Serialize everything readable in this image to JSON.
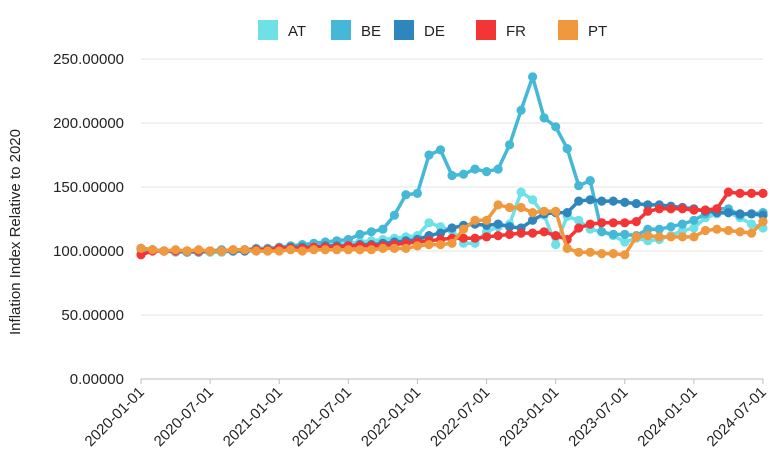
{
  "chart_data": {
    "type": "line",
    "ylabel": "Inflation Index Relative to 2020",
    "xlabel": "",
    "ylim": [
      0,
      250
    ],
    "y_ticks": [
      "0.00000",
      "50.00000",
      "100.00000",
      "150.00000",
      "200.00000",
      "250.00000"
    ],
    "x_ticks": [
      "2020-01-01",
      "2020-07-01",
      "2021-01-01",
      "2021-07-01",
      "2022-01-01",
      "2022-07-01",
      "2023-01-01",
      "2023-07-01",
      "2024-01-01",
      "2024-07-01"
    ],
    "x_start": "2020-01",
    "x_end": "2024-07",
    "grid": "horizontal",
    "legend_position": "top",
    "series": [
      {
        "name": "AT",
        "color": "#6ee0e8",
        "values": [
          101,
          101,
          100,
          99,
          99,
          99,
          99,
          99,
          100,
          100,
          100,
          100,
          103,
          103,
          104,
          104,
          104,
          105,
          106,
          107,
          108,
          109,
          110,
          111,
          112,
          122,
          119,
          116,
          106,
          106,
          115,
          119,
          121,
          146,
          140,
          128,
          105,
          127,
          124,
          117,
          115,
          112,
          107,
          110,
          108,
          109,
          112,
          116,
          118,
          126,
          129,
          130,
          126,
          121,
          118
        ]
      },
      {
        "name": "BE",
        "color": "#45b8d8",
        "values": [
          102,
          101,
          100,
          100,
          99,
          99,
          100,
          101,
          100,
          101,
          102,
          102,
          103,
          104,
          105,
          106,
          107,
          108,
          109,
          113,
          115,
          117,
          128,
          144,
          145,
          175,
          179,
          159,
          160,
          164,
          162,
          164,
          183,
          210,
          236,
          204,
          197,
          180,
          151,
          155,
          115,
          113,
          113,
          112,
          117,
          117,
          119,
          121,
          124,
          129,
          133,
          133,
          128,
          129,
          130
        ]
      },
      {
        "name": "DE",
        "color": "#2f86bd",
        "values": [
          102,
          101,
          100,
          100,
          100,
          100,
          100,
          100,
          100,
          100,
          101,
          101,
          102,
          103,
          103,
          103,
          104,
          104,
          104,
          105,
          105,
          106,
          107,
          108,
          109,
          112,
          114,
          118,
          120,
          121,
          120,
          121,
          119,
          118,
          124,
          129,
          130,
          130,
          139,
          140,
          139,
          139,
          138,
          137,
          136,
          136,
          135,
          134,
          133,
          131,
          130,
          130,
          129,
          129,
          128
        ]
      },
      {
        "name": "FR",
        "color": "#f33535",
        "values": [
          97,
          100,
          100,
          100,
          100,
          100,
          100,
          100,
          101,
          101,
          101,
          101,
          102,
          102,
          102,
          103,
          103,
          103,
          104,
          104,
          104,
          104,
          105,
          106,
          107,
          108,
          109,
          110,
          110,
          110,
          111,
          112,
          113,
          114,
          114,
          115,
          112,
          109,
          118,
          121,
          122,
          122,
          122,
          123,
          131,
          133,
          133,
          133,
          132,
          132,
          133,
          146,
          145,
          145,
          145
        ]
      },
      {
        "name": "PT",
        "color": "#f0983e",
        "values": [
          102,
          101,
          100,
          101,
          100,
          101,
          100,
          100,
          101,
          101,
          100,
          100,
          100,
          101,
          100,
          101,
          101,
          101,
          101,
          101,
          101,
          102,
          102,
          102,
          104,
          105,
          105,
          106,
          117,
          124,
          124,
          136,
          134,
          134,
          130,
          131,
          131,
          102,
          99,
          99,
          98,
          98,
          97,
          111,
          112,
          111,
          111,
          111,
          111,
          116,
          117,
          116,
          115,
          114,
          123
        ]
      }
    ]
  }
}
